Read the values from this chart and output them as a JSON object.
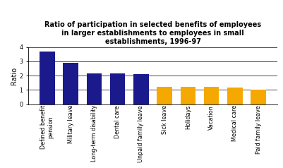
{
  "title": "Ratio of participation in selected benefits of employees\nin larger establishments to employees in small\nestablishments, 1996-97",
  "categories": [
    "Defined benefit\npension",
    "Military leave",
    "Long-term disability",
    "Dental care",
    "Unpaid family leave",
    "Sick leave",
    "Holidays",
    "Vacation",
    "Medical care",
    "Paid family leave"
  ],
  "values": [
    3.7,
    2.9,
    2.17,
    2.17,
    2.1,
    1.22,
    1.22,
    1.22,
    1.18,
    1.0
  ],
  "colors": [
    "#1a1a8c",
    "#1a1a8c",
    "#1a1a8c",
    "#1a1a8c",
    "#1a1a8c",
    "#f5a800",
    "#f5a800",
    "#f5a800",
    "#f5a800",
    "#f5a800"
  ],
  "ylabel": "Ratio",
  "ylim": [
    0,
    4
  ],
  "yticks": [
    0,
    1,
    2,
    3,
    4
  ],
  "background_color": "#ffffff",
  "title_fontsize": 7.0,
  "tick_fontsize": 5.8,
  "ylabel_fontsize": 7.0
}
